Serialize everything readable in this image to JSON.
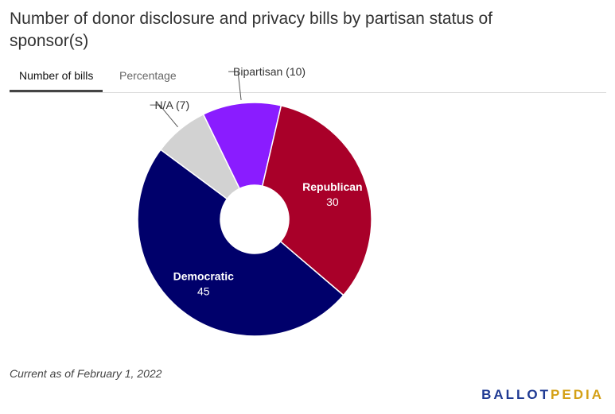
{
  "title": "Number of donor disclosure and privacy bills by partisan status of sponsor(s)",
  "tabs": [
    {
      "label": "Number of bills",
      "active": true
    },
    {
      "label": "Percentage",
      "active": false
    }
  ],
  "chart_data": {
    "type": "pie",
    "donut": true,
    "slices": [
      {
        "label": "Democratic",
        "value": 45,
        "color": "#00006b",
        "label_position": "inside"
      },
      {
        "label": "N/A",
        "value": 7,
        "color": "#d2d2d2",
        "label_position": "outside"
      },
      {
        "label": "Bipartisan",
        "value": 10,
        "color": "#8a1cff",
        "label_position": "outside"
      },
      {
        "label": "Republican",
        "value": 30,
        "color": "#a90029",
        "label_position": "inside"
      }
    ]
  },
  "footnote": "Current as of February 1, 2022",
  "logo": {
    "part1": "BALLOT",
    "part2": "PEDIA"
  }
}
